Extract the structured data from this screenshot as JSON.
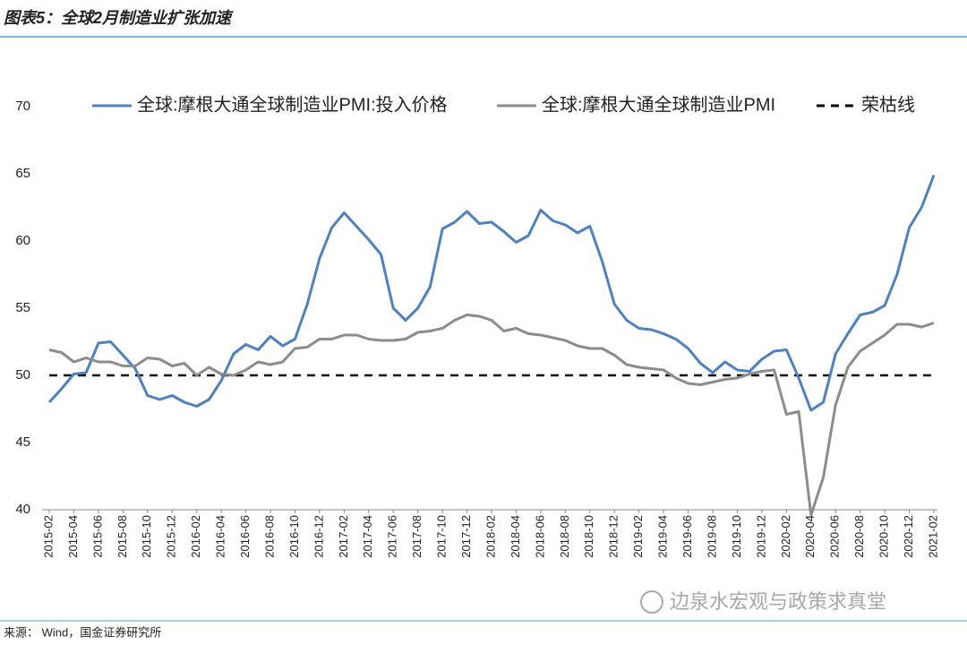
{
  "chart_data": {
    "type": "line",
    "title": "图表5：全球2月制造业扩张加速",
    "source": "来源： Wind，国金证券研究所",
    "watermark": "边泉水宏观与政策求真堂",
    "categories": [
      "2015-02",
      null,
      "2015-04",
      null,
      "2015-06",
      null,
      "2015-08",
      null,
      "2015-10",
      null,
      "2015-12",
      null,
      "2016-02",
      null,
      "2016-04",
      null,
      "2016-06",
      null,
      "2016-08",
      null,
      "2016-10",
      null,
      "2016-12",
      null,
      "2017-02",
      null,
      "2017-04",
      null,
      "2017-06",
      null,
      "2017-08",
      null,
      "2017-10",
      null,
      "2017-12",
      null,
      "2018-02",
      null,
      "2018-04",
      null,
      "2018-06",
      null,
      "2018-08",
      null,
      "2018-10",
      null,
      "2018-12",
      null,
      "2019-02",
      null,
      "2019-04",
      null,
      "2019-06",
      null,
      "2019-08",
      null,
      "2019-10",
      null,
      "2019-12",
      null,
      "2020-02",
      null,
      "2020-04",
      null,
      "2020-06",
      null,
      "2020-08",
      null,
      "2020-10",
      null,
      "2020-12",
      null,
      "2021-02"
    ],
    "series": [
      {
        "name": "全球:摩根大通全球制造业PMI:投入价格",
        "color": "#4f81bd",
        "values": [
          48.0,
          49.0,
          50.1,
          50.2,
          52.4,
          52.5,
          51.5,
          50.5,
          48.5,
          48.2,
          48.5,
          48.0,
          47.7,
          48.2,
          49.6,
          51.6,
          52.3,
          51.9,
          52.9,
          52.2,
          52.7,
          55.3,
          58.7,
          61.0,
          62.1,
          61.1,
          60.1,
          59.0,
          55.0,
          54.1,
          55.0,
          56.6,
          60.9,
          61.4,
          62.2,
          61.3,
          61.4,
          60.7,
          59.9,
          60.4,
          62.3,
          61.5,
          61.2,
          60.6,
          61.1,
          58.5,
          55.3,
          54.1,
          53.5,
          53.4,
          53.1,
          52.7,
          52.0,
          50.9,
          50.2,
          51.0,
          50.4,
          50.3,
          51.2,
          51.8,
          51.9,
          49.8,
          47.4,
          48.0,
          51.6,
          53.1,
          54.5,
          54.7,
          55.2,
          57.5,
          61.0,
          62.5,
          64.9
        ]
      },
      {
        "name": "全球:摩根大通全球制造业PMI",
        "color": "#8c8c8c",
        "values": [
          51.9,
          51.7,
          51.0,
          51.3,
          51.0,
          51.0,
          50.7,
          50.7,
          51.3,
          51.2,
          50.7,
          50.9,
          50.0,
          50.6,
          50.1,
          50.0,
          50.4,
          51.0,
          50.8,
          51.0,
          52.0,
          52.1,
          52.7,
          52.7,
          53.0,
          53.0,
          52.7,
          52.6,
          52.6,
          52.7,
          53.2,
          53.3,
          53.5,
          54.1,
          54.5,
          54.4,
          54.1,
          53.3,
          53.5,
          53.1,
          53.0,
          52.8,
          52.6,
          52.2,
          52.0,
          52.0,
          51.5,
          50.8,
          50.6,
          50.5,
          50.4,
          49.8,
          49.4,
          49.3,
          49.5,
          49.7,
          49.8,
          50.1,
          50.3,
          50.4,
          47.1,
          47.3,
          39.6,
          42.4,
          47.8,
          50.6,
          51.8,
          52.4,
          53.0,
          53.8,
          53.8,
          53.6,
          53.9
        ]
      }
    ],
    "reference_line": {
      "name": "荣枯线",
      "value": 50,
      "color": "#000000",
      "dashed": true
    },
    "ylim": [
      40,
      70
    ],
    "yticks": [
      40,
      45,
      50,
      55,
      60,
      65,
      70
    ],
    "grid": false
  }
}
